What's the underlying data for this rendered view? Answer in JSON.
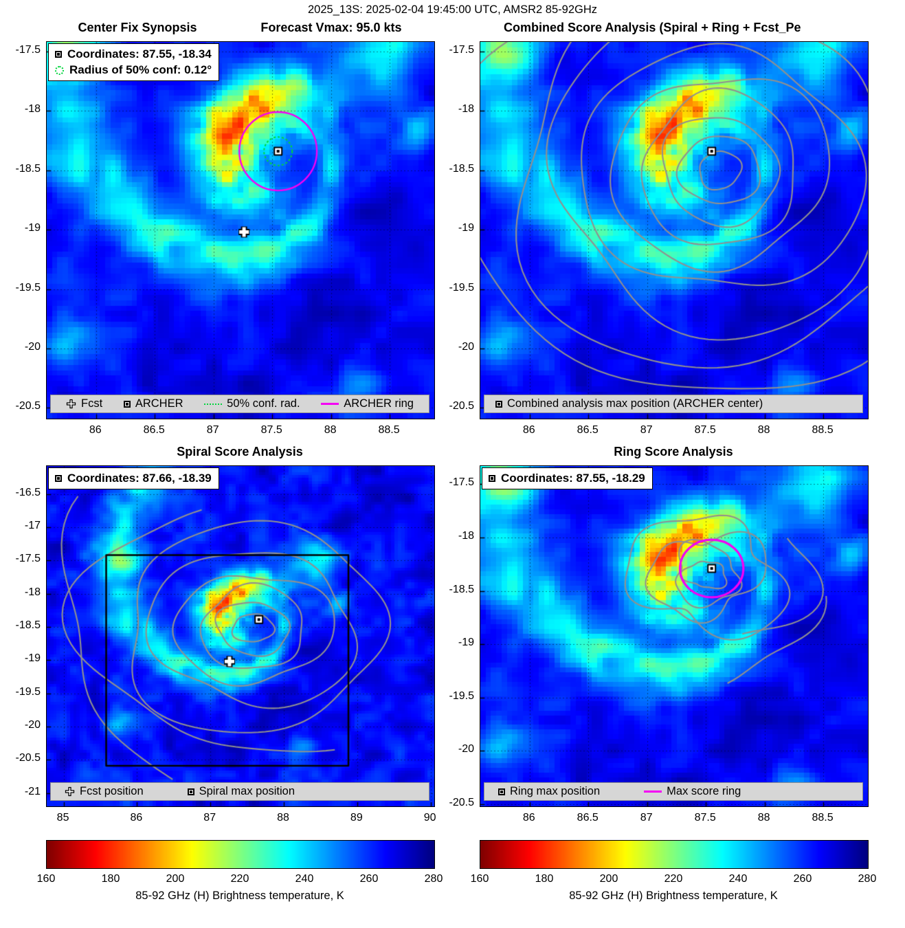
{
  "suptitle": "2025_13S: 2025-02-04 19:45:00 UTC, AMSR2 85-92GHz",
  "colorbar": {
    "min": 160,
    "max": 280,
    "ticks": [
      160,
      180,
      200,
      220,
      240,
      260,
      280
    ],
    "label": "85-92 GHz (H) Brightness temperature, K"
  },
  "colors": {
    "archer_ring": "#f400f4",
    "conf_circle": "#00d53c",
    "contour_gray": "#909090",
    "legend_bar_bg": "#d6d6d6"
  },
  "chart_data": [
    {
      "type": "heatmap",
      "panel": "center-fix-synopsis",
      "title": "Center Fix Synopsis",
      "title_right": "Forecast Vmax: 95.0 kts",
      "xlim": [
        85.58,
        88.88
      ],
      "ylim": [
        -20.59,
        -17.42
      ],
      "xticks": [
        86,
        86.5,
        87,
        87.5,
        88,
        88.5
      ],
      "yticks": [
        -17.5,
        -18,
        -18.5,
        -19,
        -19.5,
        -20,
        -20.5
      ],
      "value_range": [
        160,
        280
      ],
      "storm_center": [
        87.55,
        -18.34
      ],
      "legend_lines": [
        "Coordinates: 87.55, -18.34",
        "Radius of 50% conf: 0.12°"
      ],
      "bottom_legend": [
        "Fcst",
        "ARCHER",
        "50% conf. rad.",
        "ARCHER ring"
      ],
      "annotations": {
        "archer_center": [
          87.55,
          -18.34
        ],
        "fcst_position": [
          87.26,
          -19.02
        ],
        "conf_radius_deg": 0.12,
        "archer_ring_radius_deg": 0.33
      }
    },
    {
      "type": "heatmap_contour",
      "panel": "combined-score-analysis",
      "title": "Combined Score Analysis (Spiral + Ring + Fcst_Pe",
      "xlim": [
        85.58,
        88.88
      ],
      "ylim": [
        -20.59,
        -17.42
      ],
      "xticks": [
        86,
        86.5,
        87,
        87.5,
        88,
        88.5
      ],
      "yticks": [
        -17.5,
        -18,
        -18.5,
        -19,
        -19.5,
        -20,
        -20.5
      ],
      "value_range": [
        160,
        280
      ],
      "storm_center": [
        87.55,
        -18.34
      ],
      "legend_lines": [],
      "bottom_legend": [
        "Combined analysis max position (ARCHER center)"
      ],
      "annotations": {
        "max_position": [
          87.55,
          -18.34
        ],
        "contour_center": [
          87.62,
          -18.5
        ],
        "contour_radii_deg": [
          0.16,
          0.3,
          0.45,
          0.62,
          0.82,
          1.05,
          1.32,
          1.62,
          1.95
        ]
      }
    },
    {
      "type": "heatmap_contour",
      "panel": "spiral-score-analysis",
      "title": "Spiral Score Analysis",
      "xlim": [
        84.77,
        90.05
      ],
      "ylim": [
        -21.2,
        -16.08
      ],
      "xticks": [
        85,
        86,
        87,
        88,
        89,
        90
      ],
      "yticks": [
        -16.5,
        -17,
        -17.5,
        -18,
        -18.5,
        -19,
        -19.5,
        -20,
        -20.5,
        -21
      ],
      "value_range": [
        160,
        280
      ],
      "storm_center": [
        87.55,
        -18.34
      ],
      "legend_lines": [
        "Coordinates: 87.66, -18.39"
      ],
      "bottom_legend": [
        "Fcst position",
        "Spiral max position"
      ],
      "annotations": {
        "spiral_max_position": [
          87.66,
          -18.39
        ],
        "fcst_position": [
          87.26,
          -19.02
        ],
        "search_box": [
          85.58,
          -20.59,
          88.88,
          -17.42
        ],
        "contour_center": [
          87.58,
          -18.52
        ],
        "contour_radii_deg": [
          0.22,
          0.4,
          0.6,
          0.85,
          1.15,
          1.5
        ]
      }
    },
    {
      "type": "heatmap_contour",
      "panel": "ring-score-analysis",
      "title": "Ring Score Analysis",
      "xlim": [
        85.58,
        88.88
      ],
      "ylim": [
        -20.52,
        -17.33
      ],
      "xticks": [
        86,
        86.5,
        87,
        87.5,
        88,
        88.5
      ],
      "yticks": [
        -17.5,
        -18,
        -18.5,
        -19,
        -19.5,
        -20,
        -20.5
      ],
      "value_range": [
        160,
        280
      ],
      "storm_center": [
        87.55,
        -18.34
      ],
      "legend_lines": [
        "Coordinates: 87.55, -18.29"
      ],
      "bottom_legend": [
        "Ring max position",
        "Max score ring"
      ],
      "annotations": {
        "ring_max_position": [
          87.55,
          -18.29
        ],
        "max_score_ring_radius_deg": 0.27,
        "contour_center": [
          87.5,
          -18.35
        ],
        "contour_radii_deg": [
          0.14,
          0.26,
          0.4,
          0.55
        ]
      }
    }
  ]
}
